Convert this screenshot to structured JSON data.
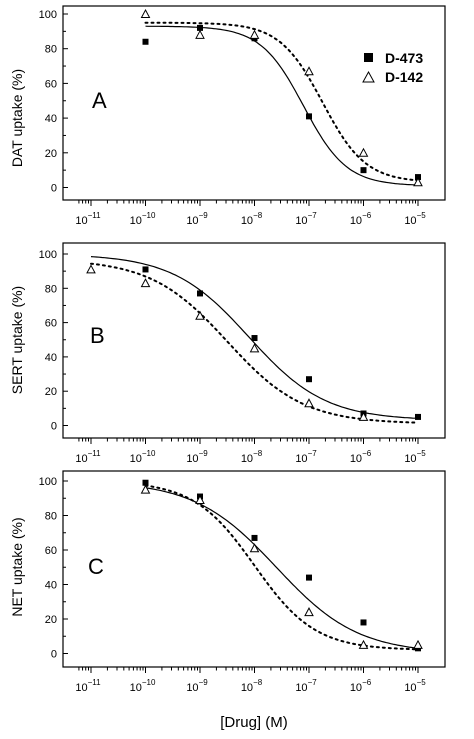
{
  "chart_data": [
    {
      "type": "scatter",
      "panel_label": "A",
      "ylabel": "DAT uptake (%)",
      "xscale": "log",
      "xlim": [
        1e-11,
        1e-05
      ],
      "ylim": [
        0,
        100
      ],
      "yticks": [
        0,
        20,
        40,
        60,
        80,
        100
      ],
      "xtick_exponents": [
        -11,
        -10,
        -9,
        -8,
        -7,
        -6,
        -5
      ],
      "legend": {
        "position": "top-right",
        "entries": [
          {
            "label": "D-473",
            "marker": "filled-square"
          },
          {
            "label": "D-142",
            "marker": "open-triangle"
          }
        ]
      },
      "series": [
        {
          "name": "D-473",
          "marker": "filled-square",
          "curve": "solid",
          "x": [
            1e-10,
            1e-09,
            1e-08,
            1e-07,
            1e-06,
            1e-05
          ],
          "y": [
            84,
            92,
            86,
            41,
            10,
            6
          ],
          "fit": {
            "top": 93,
            "bottom": 1,
            "log_ic50": -7.1,
            "hill": 1.1
          }
        },
        {
          "name": "D-142",
          "marker": "open-triangle",
          "curve": "dotted",
          "x": [
            1e-10,
            1e-09,
            1e-08,
            1e-07,
            1e-06,
            1e-05
          ],
          "y": [
            100,
            88,
            88,
            67,
            20,
            3
          ],
          "fit": {
            "top": 95,
            "bottom": 3,
            "log_ic50": -6.75,
            "hill": 1.1
          }
        }
      ]
    },
    {
      "type": "scatter",
      "panel_label": "B",
      "ylabel": "SERT uptake (%)",
      "xscale": "log",
      "xlim": [
        1e-11,
        1e-05
      ],
      "ylim": [
        0,
        100
      ],
      "yticks": [
        0,
        20,
        40,
        60,
        80,
        100
      ],
      "xtick_exponents": [
        -11,
        -10,
        -9,
        -8,
        -7,
        -6,
        -5
      ],
      "series": [
        {
          "name": "D-473",
          "marker": "filled-square",
          "curve": "solid",
          "x": [
            1e-10,
            1e-09,
            1e-08,
            1e-07,
            1e-06,
            1e-05
          ],
          "y": [
            91,
            77,
            51,
            27,
            7,
            5
          ],
          "fit": {
            "top": 100,
            "bottom": 3,
            "log_ic50": -8.1,
            "hill": 0.62
          }
        },
        {
          "name": "D-142",
          "marker": "open-triangle",
          "curve": "dotted",
          "x": [
            1e-11,
            1e-10,
            1e-09,
            1e-08,
            1e-07,
            1e-06
          ],
          "y": [
            91,
            83,
            64,
            45,
            13,
            5
          ],
          "fit": {
            "top": 97,
            "bottom": 1,
            "log_ic50": -8.5,
            "hill": 0.62
          }
        }
      ]
    },
    {
      "type": "scatter",
      "panel_label": "C",
      "ylabel": "NET uptake (%)",
      "xlabel": "[Drug] (M)",
      "xscale": "log",
      "xlim": [
        1e-11,
        1e-05
      ],
      "ylim": [
        0,
        100
      ],
      "yticks": [
        0,
        20,
        40,
        60,
        80,
        100
      ],
      "xtick_exponents": [
        -11,
        -10,
        -9,
        -8,
        -7,
        -6,
        -5
      ],
      "series": [
        {
          "name": "D-473",
          "marker": "filled-square",
          "curve": "solid",
          "x": [
            1e-10,
            1e-09,
            1e-08,
            1e-07,
            1e-06,
            1e-05
          ],
          "y": [
            99,
            91,
            67,
            44,
            18,
            3
          ],
          "fit": {
            "top": 100,
            "bottom": 0,
            "log_ic50": -7.6,
            "hill": 0.58
          }
        },
        {
          "name": "D-142",
          "marker": "open-triangle",
          "curve": "dotted",
          "x": [
            1e-10,
            1e-09,
            1e-08,
            1e-07,
            1e-06,
            1e-05
          ],
          "y": [
            95,
            89,
            61,
            24,
            5,
            5
          ],
          "fit": {
            "top": 100,
            "bottom": 2,
            "log_ic50": -8.0,
            "hill": 0.78
          }
        }
      ]
    }
  ]
}
